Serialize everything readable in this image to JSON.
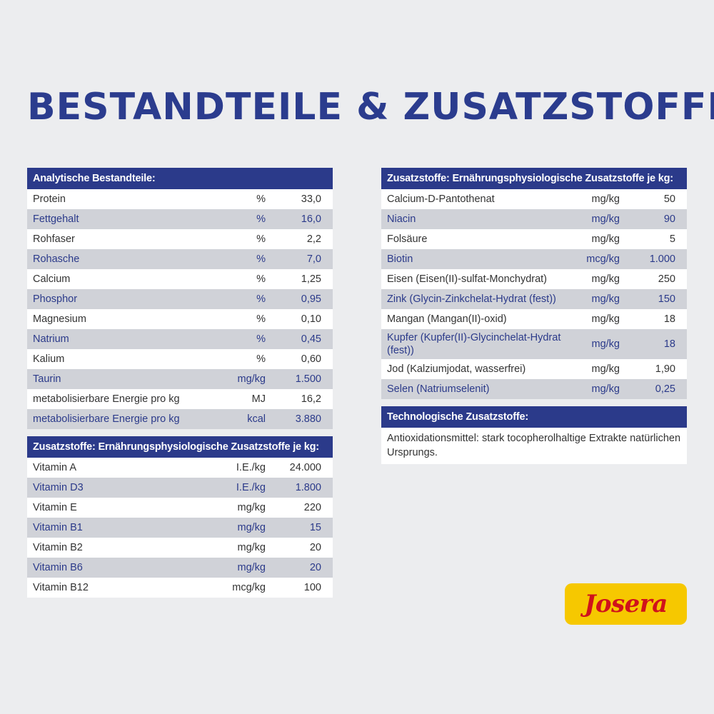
{
  "title": "BESTANDTEILE & ZUSATZSTOFFE",
  "analytische": {
    "header": "Analytische Bestandteile:",
    "rows": [
      {
        "name": "Protein",
        "unit": "%",
        "value": "33,0"
      },
      {
        "name": "Fettgehalt",
        "unit": "%",
        "value": "16,0"
      },
      {
        "name": "Rohfaser",
        "unit": "%",
        "value": "2,2"
      },
      {
        "name": "Rohasche",
        "unit": "%",
        "value": "7,0"
      },
      {
        "name": "Calcium",
        "unit": "%",
        "value": "1,25"
      },
      {
        "name": "Phosphor",
        "unit": "%",
        "value": "0,95"
      },
      {
        "name": "Magnesium",
        "unit": "%",
        "value": "0,10"
      },
      {
        "name": "Natrium",
        "unit": "%",
        "value": "0,45"
      },
      {
        "name": "Kalium",
        "unit": "%",
        "value": "0,60"
      },
      {
        "name": "Taurin",
        "unit": "mg/kg",
        "value": "1.500"
      },
      {
        "name": "metabolisierbare Energie pro kg",
        "unit": "MJ",
        "value": "16,2"
      },
      {
        "name": "metabolisierbare Energie pro kg",
        "unit": "kcal",
        "value": "3.880"
      }
    ]
  },
  "vitamine": {
    "header": "Zusatzstoffe: Ernährungsphysiologische Zusatzstoffe je kg:",
    "rows": [
      {
        "name": "Vitamin A",
        "unit": "I.E./kg",
        "value": "24.000"
      },
      {
        "name": "Vitamin D3",
        "unit": "I.E./kg",
        "value": "1.800"
      },
      {
        "name": "Vitamin E",
        "unit": "mg/kg",
        "value": "220"
      },
      {
        "name": "Vitamin B1",
        "unit": "mg/kg",
        "value": "15"
      },
      {
        "name": "Vitamin B2",
        "unit": "mg/kg",
        "value": "20"
      },
      {
        "name": "Vitamin B6",
        "unit": "mg/kg",
        "value": "20"
      },
      {
        "name": "Vitamin B12",
        "unit": "mcg/kg",
        "value": "100"
      }
    ]
  },
  "mineralien": {
    "header": "Zusatzstoffe: Ernährungsphysiologische Zusatzstoffe je kg:",
    "rows": [
      {
        "name": "Calcium-D-Pantothenat",
        "unit": "mg/kg",
        "value": "50"
      },
      {
        "name": "Niacin",
        "unit": "mg/kg",
        "value": "90"
      },
      {
        "name": "Folsäure",
        "unit": "mg/kg",
        "value": "5"
      },
      {
        "name": "Biotin",
        "unit": "mcg/kg",
        "value": "1.000"
      },
      {
        "name": "Eisen (Eisen(II)-sulfat-Monchydrat)",
        "unit": "mg/kg",
        "value": "250"
      },
      {
        "name": "Zink (Glycin-Zinkchelat-Hydrat (fest))",
        "unit": "mg/kg",
        "value": "150"
      },
      {
        "name": "Mangan (Mangan(II)-oxid)",
        "unit": "mg/kg",
        "value": "18"
      },
      {
        "name": "Kupfer (Kupfer(II)-Glycinchelat-Hydrat (fest))",
        "unit": "mg/kg",
        "value": "18"
      },
      {
        "name": "Jod (Kalziumjodat, wasserfrei)",
        "unit": "mg/kg",
        "value": "1,90"
      },
      {
        "name": "Selen (Natriumselenit)",
        "unit": "mg/kg",
        "value": "0,25"
      }
    ]
  },
  "technologische": {
    "header": "Technologische Zusatzstoffe:",
    "text": "Antioxidationsmittel: stark tocopherolhaltige Extrakte natürlichen Ursprungs."
  },
  "logo": {
    "text": "Josera",
    "bg_color": "#f6c800",
    "text_color": "#d0121b"
  },
  "colors": {
    "header_bg": "#2b3a8a",
    "alt_row_bg": "#d0d2d8",
    "title": "#2b3c8e"
  }
}
